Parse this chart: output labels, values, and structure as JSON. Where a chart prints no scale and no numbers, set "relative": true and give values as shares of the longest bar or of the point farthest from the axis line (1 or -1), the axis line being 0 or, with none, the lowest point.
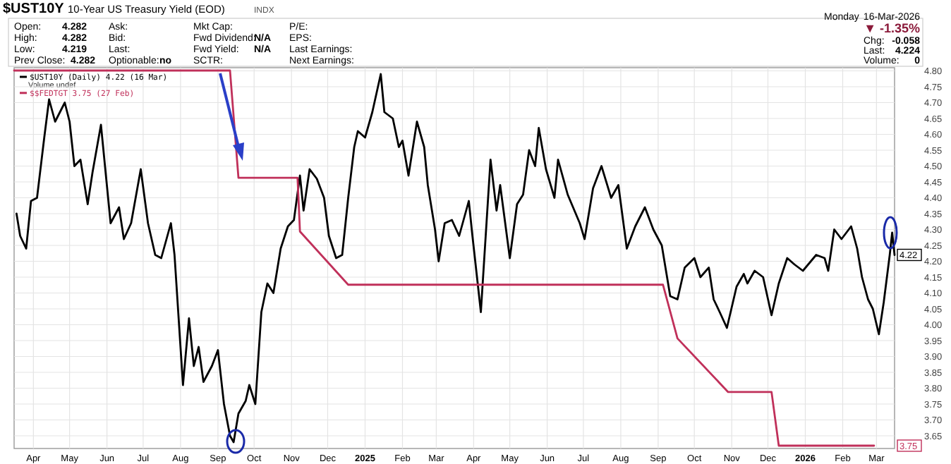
{
  "chart_data": [
    {
      "type": "line",
      "title": "$UST10Y",
      "subtitle": "10-Year US Treasury Yield (EOD)",
      "annotations": [
        "Open:",
        "4.282",
        "High:",
        "4.282",
        "Low:",
        "4.219",
        "Prev Close:",
        "4.282",
        "Ask:",
        "Bid:",
        "Last:",
        "Optionable:",
        "no",
        "Mkt Cap:",
        "Fwd Dividend:",
        "N/A",
        "Fwd Yield:",
        "N/A",
        "SCTR:",
        "P/E:",
        "EPS:",
        "Last Earnings:",
        "Next Earnings:",
        "Monday",
        "16-Mar-2026",
        "▼ -1.35%",
        "Chg:",
        "-0.058",
        "Last:",
        "4.224",
        "Volume:",
        "0",
        "Volume undef",
        "INDX",
        {
          "text": "4.22",
          "x": "2026-03-16",
          "y": 4.22
        }
      ],
      "xlim": [
        "2024-03-16",
        "2026-03-16"
      ],
      "xticks": [
        {
          "value": "2024-04-01",
          "label": "Apr"
        },
        {
          "value": "2024-05-01",
          "label": "May"
        },
        {
          "value": "2024-06-01",
          "label": "Jun"
        },
        {
          "value": "2024-07-01",
          "label": "Jul"
        },
        {
          "value": "2024-08-01",
          "label": "Aug"
        },
        {
          "value": "2024-09-01",
          "label": "Sep"
        },
        {
          "value": "2024-10-01",
          "label": "Oct"
        },
        {
          "value": "2024-11-01",
          "label": "Nov"
        },
        {
          "value": "2024-12-01",
          "label": "Dec"
        },
        {
          "value": "2025-01-01",
          "label": "2025"
        },
        {
          "value": "2025-02-01",
          "label": "Feb"
        },
        {
          "value": "2025-03-01",
          "label": "Mar"
        },
        {
          "value": "2025-04-01",
          "label": "Apr"
        },
        {
          "value": "2025-05-01",
          "label": "May"
        },
        {
          "value": "2025-06-01",
          "label": "Jun"
        },
        {
          "value": "2025-07-01",
          "label": "Jul"
        },
        {
          "value": "2025-08-01",
          "label": "Aug"
        },
        {
          "value": "2025-09-01",
          "label": "Sep"
        },
        {
          "value": "2025-10-01",
          "label": "Oct"
        },
        {
          "value": "2025-11-01",
          "label": "Nov"
        },
        {
          "value": "2025-12-01",
          "label": "Dec"
        },
        {
          "value": "2026-01-01",
          "label": "2026"
        },
        {
          "value": "2026-02-01",
          "label": "Feb"
        },
        {
          "value": "2026-03-01",
          "label": "Mar"
        }
      ],
      "ylim": [
        3.61,
        4.81
      ],
      "yticks": [
        {
          "value": 3.65,
          "label": "3.65"
        },
        {
          "value": 3.7,
          "label": "3.70"
        },
        {
          "value": 3.75,
          "label": "3.75"
        },
        {
          "value": 3.8,
          "label": "3.80"
        },
        {
          "value": 3.85,
          "label": "3.85"
        },
        {
          "value": 3.9,
          "label": "3.90"
        },
        {
          "value": 3.95,
          "label": "3.95"
        },
        {
          "value": 4.0,
          "label": "4.00"
        },
        {
          "value": 4.05,
          "label": "4.05"
        },
        {
          "value": 4.1,
          "label": "4.10"
        },
        {
          "value": 4.15,
          "label": "4.15"
        },
        {
          "value": 4.2,
          "label": "4.20"
        },
        {
          "value": 4.25,
          "label": "4.25"
        },
        {
          "value": 4.3,
          "label": "4.30"
        },
        {
          "value": 4.35,
          "label": "4.35"
        },
        {
          "value": 4.4,
          "label": "4.40"
        },
        {
          "value": 4.45,
          "label": "4.45"
        },
        {
          "value": 4.5,
          "label": "4.50"
        },
        {
          "value": 4.55,
          "label": "4.55"
        },
        {
          "value": 4.6,
          "label": "4.60"
        },
        {
          "value": 4.65,
          "label": "4.65"
        },
        {
          "value": 4.7,
          "label": "4.70"
        },
        {
          "value": 4.75,
          "label": "4.75"
        },
        {
          "value": 4.8,
          "label": "4.80"
        }
      ],
      "grid": true,
      "legend": "top left",
      "series": [
        {
          "name": "$UST10Y (Daily) 4.22 (16 Mar)",
          "color": "#000000",
          "type": "line",
          "x": [
            "2024-03-18",
            "2024-03-21",
            "2024-03-26",
            "2024-03-30",
            "2024-04-04",
            "2024-04-10",
            "2024-04-14",
            "2024-04-19",
            "2024-04-27",
            "2024-05-01",
            "2024-05-05",
            "2024-05-10",
            "2024-05-16",
            "2024-05-20",
            "2024-05-27",
            "2024-06-04",
            "2024-06-11",
            "2024-06-15",
            "2024-06-21",
            "2024-06-29",
            "2024-07-05",
            "2024-07-11",
            "2024-07-16",
            "2024-07-24",
            "2024-07-27",
            "2024-08-03",
            "2024-08-08",
            "2024-08-12",
            "2024-08-16",
            "2024-08-20",
            "2024-08-27",
            "2024-09-01",
            "2024-09-06",
            "2024-09-11",
            "2024-09-14",
            "2024-09-18",
            "2024-09-24",
            "2024-09-27",
            "2024-10-02",
            "2024-10-07",
            "2024-10-12",
            "2024-10-17",
            "2024-10-23",
            "2024-10-29",
            "2024-11-03",
            "2024-11-08",
            "2024-11-11",
            "2024-11-16",
            "2024-11-22",
            "2024-11-28",
            "2024-12-02",
            "2024-12-08",
            "2024-12-13",
            "2024-12-18",
            "2024-12-23",
            "2024-12-26",
            "2025-01-01",
            "2025-01-07",
            "2025-01-14",
            "2025-01-17",
            "2025-01-24",
            "2025-01-29",
            "2025-02-01",
            "2025-02-06",
            "2025-02-13",
            "2025-02-19",
            "2025-02-22",
            "2025-02-28",
            "2025-03-03",
            "2025-03-08",
            "2025-03-14",
            "2025-03-20",
            "2025-03-28",
            "2025-03-31",
            "2025-04-07",
            "2025-04-15",
            "2025-04-20",
            "2025-04-23",
            "2025-05-01",
            "2025-05-07",
            "2025-05-12",
            "2025-05-17",
            "2025-05-22",
            "2025-05-25",
            "2025-05-31",
            "2025-06-07",
            "2025-06-10",
            "2025-06-18",
            "2025-06-28",
            "2025-07-02",
            "2025-07-09",
            "2025-07-16",
            "2025-07-24",
            "2025-07-30",
            "2025-08-06",
            "2025-08-13",
            "2025-08-21",
            "2025-08-28",
            "2025-09-04",
            "2025-09-11",
            "2025-09-17",
            "2025-09-23",
            "2025-10-01",
            "2025-10-06",
            "2025-10-13",
            "2025-10-17",
            "2025-10-22",
            "2025-10-28",
            "2025-11-05",
            "2025-11-11",
            "2025-11-14",
            "2025-11-20",
            "2025-11-27",
            "2025-12-04",
            "2025-12-10",
            "2025-12-17",
            "2025-12-23",
            "2025-12-30",
            "2026-01-10",
            "2026-01-17",
            "2026-01-20",
            "2026-01-25",
            "2026-01-31",
            "2026-02-08",
            "2026-02-13",
            "2026-02-17",
            "2026-02-22",
            "2026-02-26",
            "2026-03-03",
            "2026-03-07",
            "2026-03-12",
            "2026-03-14",
            "2026-03-16"
          ],
          "values": [
            4.35,
            4.28,
            4.24,
            4.39,
            4.4,
            4.59,
            4.71,
            4.64,
            4.7,
            4.64,
            4.5,
            4.52,
            4.38,
            4.48,
            4.63,
            4.32,
            4.37,
            4.27,
            4.32,
            4.49,
            4.32,
            4.22,
            4.21,
            4.32,
            4.22,
            3.81,
            4.02,
            3.87,
            3.93,
            3.82,
            3.87,
            3.92,
            3.75,
            3.65,
            3.63,
            3.72,
            3.76,
            3.81,
            3.75,
            4.04,
            4.13,
            4.1,
            4.24,
            4.31,
            4.33,
            4.47,
            4.36,
            4.49,
            4.46,
            4.4,
            4.28,
            4.21,
            4.22,
            4.4,
            4.56,
            4.61,
            4.59,
            4.67,
            4.79,
            4.67,
            4.65,
            4.56,
            4.58,
            4.47,
            4.64,
            4.56,
            4.44,
            4.3,
            4.2,
            4.32,
            4.33,
            4.28,
            4.39,
            4.28,
            4.04,
            4.52,
            4.36,
            4.44,
            4.21,
            4.38,
            4.41,
            4.55,
            4.5,
            4.62,
            4.49,
            4.4,
            4.52,
            4.41,
            4.32,
            4.27,
            4.43,
            4.5,
            4.4,
            4.44,
            4.24,
            4.31,
            4.37,
            4.3,
            4.25,
            4.09,
            4.08,
            4.18,
            4.21,
            4.15,
            4.18,
            4.08,
            4.04,
            3.99,
            4.12,
            4.16,
            4.13,
            4.17,
            4.15,
            4.03,
            4.13,
            4.21,
            4.19,
            4.17,
            4.22,
            4.21,
            4.17,
            4.3,
            4.27,
            4.31,
            4.24,
            4.15,
            4.08,
            4.05,
            3.97,
            4.07,
            4.22,
            4.29,
            4.22
          ]
        }
      ]
    },
    {
      "type": "line",
      "relative": true,
      "xlim": [
        "2024-03-16",
        "2026-03-16"
      ],
      "legend": "top left",
      "annotations": [
        "3.75"
      ],
      "series": [
        {
          "name": "$$FEDTGT 3.75 (27 Feb)",
          "color": "#c0305a",
          "type": "line",
          "x": [
            "2024-03-16",
            "2024-09-11",
            "2024-09-18",
            "2024-11-06",
            "2024-11-08",
            "2024-12-18",
            "2025-09-05",
            "2025-09-17",
            "2025-10-29",
            "2025-12-04",
            "2025-12-10",
            "2026-02-27"
          ],
          "values": [
            1,
            1,
            0.714,
            0.714,
            0.571,
            0.429,
            0.429,
            0.286,
            0.143,
            0.143,
            0,
            0
          ]
        }
      ]
    }
  ]
}
